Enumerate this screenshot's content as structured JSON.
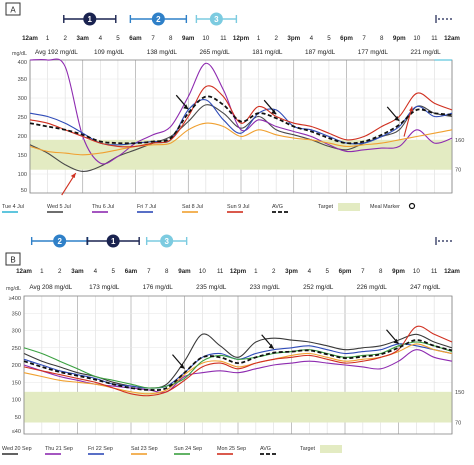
{
  "colors": {
    "target_band": "#e3ebc2",
    "avg": "#111111",
    "tue": "#39b8d6",
    "wed": "#4a4a4a",
    "thu": "#8e2bb0",
    "fri": "#2f4bb8",
    "sat": "#f0a030",
    "sun": "#d03020",
    "tue2": "#3a3a3a",
    "thu2": "#8e2bb0",
    "fri2": "#2f4bb8",
    "sat2": "#f0a030",
    "sun2": "#3aa040",
    "mon2": "#d03020",
    "marker_dark": "#1a2350",
    "marker_blue": "#2f80c8",
    "marker_light": "#7ccbe0",
    "arrow_red": "#d03020"
  },
  "chart_data": [
    {
      "type": "line",
      "panel_label": "A",
      "ylabel": "mg/dL",
      "ylim": [
        0,
        400
      ],
      "y_ticks": [
        "400",
        "350",
        "300",
        "250",
        "200",
        "150",
        "100",
        "50"
      ],
      "x_ticks": [
        "12am",
        "1",
        "2",
        "3am",
        "4",
        "5",
        "6am",
        "7",
        "8",
        "9am",
        "10",
        "11",
        "12pm",
        "1",
        "2",
        "3pm",
        "4",
        "5",
        "6pm",
        "7",
        "8",
        "9pm",
        "10",
        "11",
        "12am"
      ],
      "interval_avgs": [
        "Avg 192 mg/dL",
        "109 mg/dL",
        "138 mg/dL",
        "265 mg/dL",
        "181 mg/dL",
        "187 mg/dL",
        "177 mg/dL",
        "221 mg/dL"
      ],
      "right_labels": [
        "160",
        "70"
      ],
      "target_range": [
        70,
        160
      ],
      "markers": [
        {
          "label": "1",
          "hour": 3.4
        },
        {
          "label": "2",
          "hour": 7.3
        },
        {
          "label": "3",
          "hour": 10.6
        }
      ],
      "x": [
        0,
        1,
        2,
        3,
        4,
        5,
        6,
        7,
        8,
        9,
        10,
        11,
        12,
        13,
        14,
        15,
        16,
        17,
        18,
        19,
        20,
        21,
        22,
        23,
        24
      ],
      "series": [
        {
          "name": "Tue 4 Jul",
          "color_key": "tue",
          "values": [
            null,
            null,
            null,
            null,
            null,
            null,
            null,
            null,
            null,
            null,
            null,
            null,
            null,
            null,
            null,
            null,
            null,
            null,
            null,
            null,
            null,
            null,
            null,
            400,
            400
          ]
        },
        {
          "name": "Wed 5 Jul",
          "color_key": "wed",
          "values": [
            145,
            120,
            85,
            65,
            80,
            110,
            130,
            150,
            170,
            215,
            265,
            240,
            195,
            230,
            190,
            175,
            160,
            140,
            130,
            150,
            170,
            190,
            260,
            240,
            230
          ]
        },
        {
          "name": "Thu 6 Jul",
          "color_key": "thu",
          "values": [
            400,
            400,
            380,
            170,
            90,
            110,
            150,
            175,
            200,
            290,
            390,
            310,
            190,
            220,
            200,
            185,
            170,
            145,
            125,
            130,
            135,
            140,
            190,
            150,
            165
          ]
        },
        {
          "name": "Fri 7 Jul",
          "color_key": "fri",
          "values": [
            240,
            230,
            210,
            180,
            150,
            145,
            150,
            155,
            160,
            250,
            280,
            220,
            180,
            240,
            250,
            200,
            190,
            170,
            150,
            150,
            170,
            200,
            260,
            230,
            240
          ]
        },
        {
          "name": "Sat 8 Jul",
          "color_key": "sat",
          "values": [
            140,
            125,
            120,
            115,
            120,
            130,
            140,
            145,
            150,
            190,
            210,
            200,
            170,
            190,
            175,
            165,
            160,
            150,
            140,
            145,
            150,
            160,
            170,
            180,
            190
          ]
        },
        {
          "name": "Sun 9 Jul",
          "color_key": "sun",
          "values": [
            220,
            210,
            190,
            170,
            150,
            140,
            140,
            150,
            160,
            230,
            320,
            290,
            210,
            260,
            230,
            210,
            200,
            180,
            160,
            170,
            200,
            230,
            300,
            270,
            250
          ]
        },
        {
          "name": "AVG",
          "color_key": "avg",
          "dashed": true,
          "values": [
            210,
            200,
            190,
            175,
            155,
            150,
            150,
            155,
            165,
            240,
            290,
            265,
            215,
            240,
            225,
            200,
            185,
            165,
            150,
            155,
            175,
            205,
            250,
            240,
            235
          ]
        }
      ],
      "legend_extra": [
        "Target",
        "Meal Marker"
      ]
    },
    {
      "type": "line",
      "panel_label": "B",
      "ylabel": "mg/dL",
      "ylim": [
        40,
        400
      ],
      "y_ticks": [
        "≥400",
        "350",
        "300",
        "250",
        "200",
        "150",
        "100",
        "50",
        "≤40"
      ],
      "x_ticks": [
        "12am",
        "1",
        "2",
        "3am",
        "4",
        "5",
        "6am",
        "7",
        "8",
        "9am",
        "10",
        "11",
        "12pm",
        "1",
        "2",
        "3pm",
        "4",
        "5",
        "6pm",
        "7",
        "8",
        "9pm",
        "10",
        "11",
        "12am"
      ],
      "interval_avgs": [
        "Avg 208 mg/dL",
        "173 mg/dL",
        "176 mg/dL",
        "235 mg/dL",
        "233 mg/dL",
        "252 mg/dL",
        "226 mg/dL",
        "247 mg/dL"
      ],
      "right_labels": [
        "150",
        "70"
      ],
      "target_range": [
        70,
        150
      ],
      "markers": [
        {
          "label": "2",
          "hour": 2.0
        },
        {
          "label": "1",
          "hour": 5.0
        },
        {
          "label": "3",
          "hour": 8.0
        }
      ],
      "x": [
        0,
        1,
        2,
        3,
        4,
        5,
        6,
        7,
        8,
        9,
        10,
        11,
        12,
        13,
        14,
        15,
        16,
        17,
        18,
        19,
        20,
        21,
        22,
        23,
        24
      ],
      "series": [
        {
          "name": "Wed 20 Sep",
          "color_key": "tue2",
          "values": [
            250,
            230,
            215,
            200,
            190,
            175,
            165,
            160,
            170,
            230,
            300,
            270,
            240,
            280,
            290,
            285,
            280,
            270,
            260,
            265,
            270,
            285,
            300,
            280,
            265
          ]
        },
        {
          "name": "Thu 21 Sep",
          "color_key": "thu2",
          "values": [
            220,
            205,
            190,
            180,
            170,
            165,
            160,
            155,
            150,
            190,
            200,
            205,
            200,
            210,
            220,
            225,
            230,
            225,
            220,
            215,
            210,
            230,
            260,
            240,
            230
          ]
        },
        {
          "name": "Fri 22 Sep",
          "color_key": "fri2",
          "values": [
            235,
            220,
            205,
            195,
            185,
            170,
            165,
            160,
            165,
            200,
            240,
            250,
            235,
            250,
            260,
            265,
            270,
            260,
            250,
            255,
            260,
            275,
            270,
            260,
            250
          ]
        },
        {
          "name": "Sat 23 Sep",
          "color_key": "sat2",
          "values": [
            200,
            190,
            180,
            175,
            170,
            160,
            150,
            145,
            155,
            195,
            225,
            230,
            215,
            225,
            235,
            245,
            250,
            240,
            230,
            235,
            240,
            255,
            275,
            260,
            250
          ]
        },
        {
          "name": "Sun 24 Sep",
          "color_key": "sun2",
          "values": [
            265,
            250,
            230,
            210,
            190,
            180,
            170,
            160,
            165,
            185,
            230,
            245,
            235,
            240,
            250,
            255,
            260,
            250,
            240,
            245,
            250,
            270,
            280,
            270,
            255
          ]
        },
        {
          "name": "Mon 25 Sep",
          "color_key": "mon2",
          "values": [
            215,
            205,
            195,
            185,
            175,
            160,
            145,
            140,
            150,
            180,
            215,
            225,
            210,
            225,
            235,
            240,
            245,
            235,
            225,
            230,
            240,
            260,
            320,
            300,
            280
          ]
        },
        {
          "name": "AVG",
          "color_key": "avg",
          "dashed": true,
          "values": [
            230,
            215,
            202,
            192,
            182,
            170,
            160,
            155,
            160,
            200,
            240,
            240,
            225,
            240,
            252,
            255,
            258,
            248,
            238,
            242,
            248,
            265,
            285,
            270,
            258
          ]
        }
      ],
      "legend_extra": [
        "Target"
      ]
    }
  ]
}
